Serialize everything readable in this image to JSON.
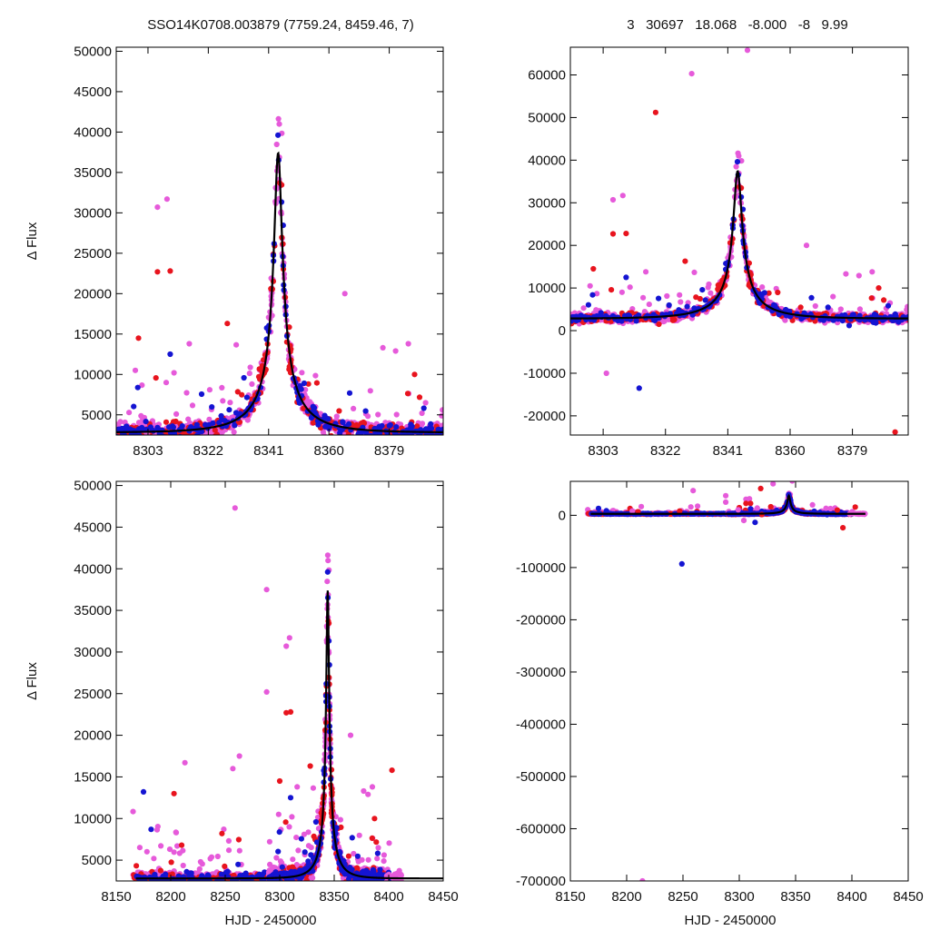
{
  "figure": {
    "title_left": "SSO14K0708.003879 (7759.24, 8459.46,     7)",
    "title_right": "3   30697   18.068   -8.000   -8   9.99",
    "colors": {
      "series_red": "#e8141e",
      "series_magenta": "#e65ada",
      "series_blue": "#1414d2",
      "model": "#000000"
    }
  },
  "chart_data": [
    {
      "type": "scatter",
      "panel": "top-left",
      "title": "SSO14K0708.003879 (7759.24, 8459.46,     7)",
      "xlabel": "",
      "ylabel": "Δ Flux",
      "xlim": [
        8293,
        8396
      ],
      "ylim": [
        2500,
        50500
      ],
      "xticks": [
        8303,
        8322,
        8341,
        8360,
        8379
      ],
      "yticks": [
        5000,
        10000,
        15000,
        20000,
        25000,
        30000,
        35000,
        40000,
        45000,
        50000
      ],
      "model": {
        "t0": 8344,
        "u0": 0.07,
        "tE": 18,
        "fs": 2600,
        "fb": 200
      }
    },
    {
      "type": "scatter",
      "panel": "top-right",
      "title": "3   30697   18.068   -8.000   -8   9.99",
      "xlabel": "",
      "ylabel": "",
      "xlim": [
        8293,
        8396
      ],
      "ylim": [
        -24500,
        66500
      ],
      "xticks": [
        8303,
        8322,
        8341,
        8360,
        8379
      ],
      "yticks": [
        -20000,
        -10000,
        0,
        10000,
        20000,
        30000,
        40000,
        50000,
        60000
      ],
      "model": {
        "t0": 8344,
        "u0": 0.07,
        "tE": 18,
        "fs": 2600,
        "fb": 200
      }
    },
    {
      "type": "scatter",
      "panel": "bottom-left",
      "title": "",
      "xlabel": "HJD - 2450000",
      "ylabel": "Δ Flux",
      "xlim": [
        8150,
        8450
      ],
      "ylim": [
        2500,
        50500
      ],
      "xticks": [
        8150,
        8200,
        8250,
        8300,
        8350,
        8400,
        8450
      ],
      "yticks": [
        5000,
        10000,
        15000,
        20000,
        25000,
        30000,
        35000,
        40000,
        45000,
        50000
      ],
      "model": {
        "t0": 8344,
        "u0": 0.07,
        "tE": 18,
        "fs": 2600,
        "fb": 200
      }
    },
    {
      "type": "scatter",
      "panel": "bottom-right",
      "title": "",
      "xlabel": "HJD - 2450000",
      "ylabel": "",
      "xlim": [
        8150,
        8450
      ],
      "ylim": [
        -700000,
        65000
      ],
      "xticks": [
        8150,
        8200,
        8250,
        8300,
        8350,
        8400,
        8450
      ],
      "yticks": [
        -700000,
        -600000,
        -500000,
        -400000,
        -300000,
        -200000,
        -100000,
        0
      ],
      "model": {
        "t0": 8344,
        "u0": 0.07,
        "tE": 18,
        "fs": 2600,
        "fb": 200
      }
    }
  ]
}
